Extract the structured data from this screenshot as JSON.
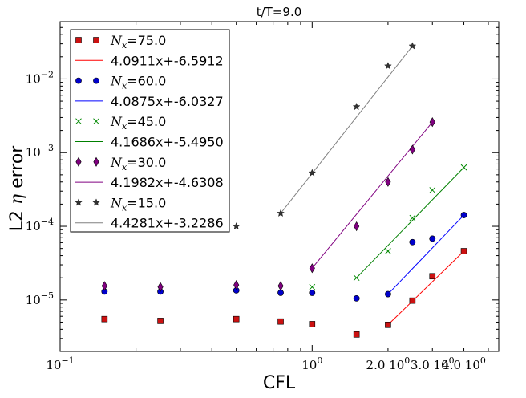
{
  "chart_data": {
    "type": "scatter",
    "title": "t/T=9.0",
    "xlabel": "CFL",
    "ylabel_prefix": "L2 ",
    "ylabel_symbol": "η",
    "ylabel_suffix": " error",
    "xscale": "log",
    "yscale": "log",
    "xlim": [
      0.1,
      5.5
    ],
    "ylim": [
      2e-06,
      0.06
    ],
    "x_ticks": [
      {
        "value": 0.1,
        "base": "10",
        "exp": "−1"
      },
      {
        "value": 1.0,
        "base": "10",
        "exp": "0"
      },
      {
        "value": 2.0,
        "prefix": "2.0 ",
        "base": "10",
        "exp": "0"
      },
      {
        "value": 3.0,
        "prefix": "3.0 ",
        "base": "10",
        "exp": "0"
      },
      {
        "value": 4.0,
        "prefix": "4.0 ",
        "base": "10",
        "exp": "0"
      }
    ],
    "y_ticks": [
      {
        "value": 1e-05,
        "base": "10",
        "exp": "−5"
      },
      {
        "value": 0.0001,
        "base": "10",
        "exp": "−4"
      },
      {
        "value": 0.001,
        "base": "10",
        "exp": "−3"
      },
      {
        "value": 0.01,
        "base": "10",
        "exp": "−2"
      }
    ],
    "series": [
      {
        "name": "75.0",
        "label_prefix": "N",
        "label_sub": "x",
        "label_suffix": "=75.0",
        "marker": "square",
        "color": "#cc1111",
        "fit_label": "4.0911x+-6.5912",
        "fit_color": "#ff0000",
        "x": [
          0.15,
          0.25,
          0.5,
          0.75,
          1.0,
          1.5,
          2.0,
          2.5,
          3.0,
          4.0
        ],
        "y": [
          5.5e-06,
          5.2e-06,
          5.5e-06,
          5.1e-06,
          4.7e-06,
          3.4e-06,
          4.6e-06,
          9.8e-06,
          2.1e-05,
          4.6e-05
        ],
        "fit_x": [
          2.0,
          4.0
        ]
      },
      {
        "name": "60.0",
        "label_prefix": "N",
        "label_sub": "x",
        "label_suffix": "=60.0",
        "marker": "circle",
        "color": "#0000cc",
        "fit_label": "4.0875x+-6.0327",
        "fit_color": "#0000ff",
        "x": [
          0.15,
          0.25,
          0.5,
          0.75,
          1.0,
          1.5,
          2.0,
          2.5,
          3.0,
          4.0
        ],
        "y": [
          1.3e-05,
          1.3e-05,
          1.35e-05,
          1.25e-05,
          1.25e-05,
          1.05e-05,
          1.2e-05,
          6.1e-05,
          6.8e-05,
          0.000142
        ],
        "fit_x": [
          2.0,
          4.0
        ]
      },
      {
        "name": "45.0",
        "label_prefix": "N",
        "label_sub": "x",
        "label_suffix": "=45.0",
        "marker": "x",
        "color": "#008800",
        "fit_label": "4.1686x+-5.4950",
        "fit_color": "#008000",
        "x": [
          1.0,
          1.5,
          2.0,
          2.5,
          3.0,
          4.0
        ],
        "y": [
          1.5e-05,
          2e-05,
          4.6e-05,
          0.00013,
          0.00031,
          0.00063
        ],
        "fit_x": [
          1.5,
          4.0
        ]
      },
      {
        "name": "30.0",
        "label_prefix": "N",
        "label_sub": "x",
        "label_suffix": "=30.0",
        "marker": "diamond",
        "color": "#800080",
        "fit_label": "4.1982x+-4.6308",
        "fit_color": "#800080",
        "x": [
          0.15,
          0.25,
          0.5,
          0.75,
          1.0,
          1.5,
          2.0,
          2.5,
          3.0
        ],
        "y": [
          1.55e-05,
          1.5e-05,
          1.6e-05,
          1.55e-05,
          2.7e-05,
          0.0001,
          0.0004,
          0.0011,
          0.0026
        ],
        "fit_x": [
          1.0,
          3.0
        ]
      },
      {
        "name": "15.0",
        "label_prefix": "N",
        "label_sub": "x",
        "label_suffix": "=15.0",
        "marker": "star",
        "color": "#333333",
        "fit_label": "4.4281x+-3.2286",
        "fit_color": "#808080",
        "x": [
          0.5,
          0.75,
          1.0,
          1.5,
          2.0,
          2.5
        ],
        "y": [
          0.0001,
          0.00015,
          0.00053,
          0.0042,
          0.015,
          0.028
        ],
        "fit_x": [
          0.75,
          2.5
        ]
      }
    ],
    "legend_position": "top-left"
  }
}
